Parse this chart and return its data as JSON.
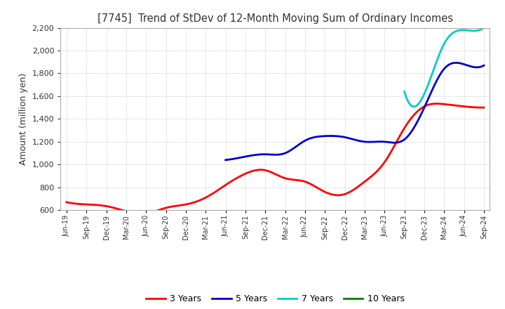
{
  "title": "[7745]  Trend of StDev of 12-Month Moving Sum of Ordinary Incomes",
  "ylabel": "Amount (million yen)",
  "ylim": [
    600,
    2200
  ],
  "yticks": [
    600,
    800,
    1000,
    1200,
    1400,
    1600,
    1800,
    2000,
    2200
  ],
  "background_color": "#ffffff",
  "plot_bg_color": "#ffffff",
  "grid_color": "#aaaaaa",
  "x_labels": [
    "Jun-19",
    "Sep-19",
    "Dec-19",
    "Mar-20",
    "Jun-20",
    "Sep-20",
    "Dec-20",
    "Mar-21",
    "Jun-21",
    "Sep-21",
    "Dec-21",
    "Mar-22",
    "Jun-22",
    "Sep-22",
    "Dec-22",
    "Mar-23",
    "Jun-23",
    "Sep-23",
    "Dec-23",
    "Mar-24",
    "Jun-24",
    "Sep-24"
  ],
  "series": {
    "3 Years": {
      "color": "#ff0000",
      "data": [
        670,
        650,
        635,
        590,
        570,
        620,
        650,
        710,
        820,
        920,
        950,
        880,
        850,
        760,
        740,
        850,
        1020,
        1320,
        1510,
        1530,
        1510,
        1500
      ]
    },
    "5 Years": {
      "color": "#0000cc",
      "data": [
        null,
        null,
        null,
        null,
        null,
        null,
        null,
        null,
        1040,
        1070,
        1090,
        1100,
        1210,
        1250,
        1240,
        1200,
        1200,
        1220,
        1500,
        1840,
        1880,
        1870
      ]
    },
    "7 Years": {
      "color": "#00cccc",
      "data": [
        null,
        null,
        null,
        null,
        null,
        null,
        null,
        null,
        null,
        null,
        null,
        null,
        null,
        null,
        null,
        null,
        null,
        1640,
        1620,
        2060,
        2180,
        2200
      ]
    },
    "10 Years": {
      "color": "#008000",
      "data": [
        null,
        null,
        null,
        null,
        null,
        null,
        null,
        null,
        null,
        null,
        null,
        null,
        null,
        null,
        null,
        null,
        null,
        null,
        null,
        null,
        null,
        null
      ]
    }
  },
  "legend_order": [
    "3 Years",
    "5 Years",
    "7 Years",
    "10 Years"
  ]
}
